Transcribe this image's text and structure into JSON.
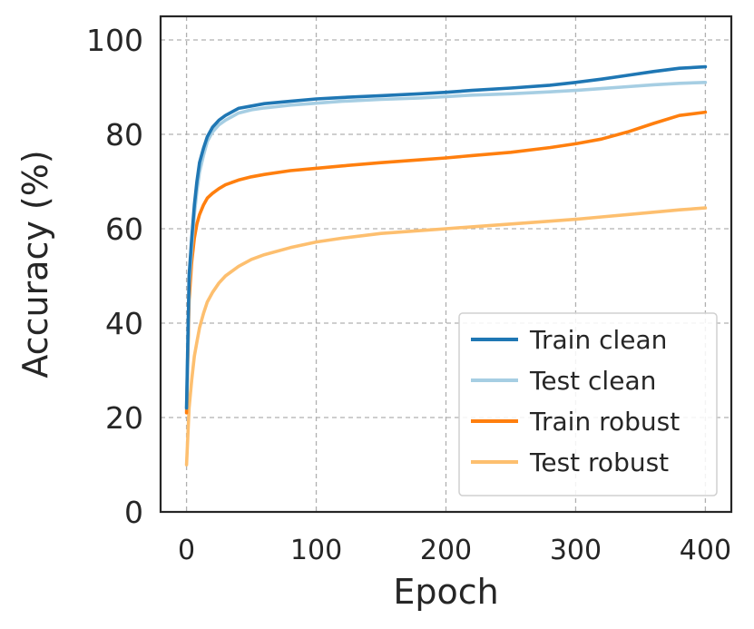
{
  "chart_data": {
    "type": "line",
    "title": "",
    "xlabel": "Epoch",
    "ylabel": "Accuracy (%)",
    "xlim": [
      -20,
      420
    ],
    "ylim": [
      0,
      105
    ],
    "xticks": [
      0,
      100,
      200,
      300,
      400
    ],
    "yticks": [
      0,
      20,
      40,
      60,
      80,
      100
    ],
    "grid": true,
    "legend_position": "lower-right",
    "series": [
      {
        "name": "Train clean",
        "color": "#1f77b4",
        "x": [
          0,
          2,
          4,
          6,
          8,
          10,
          13,
          16,
          20,
          25,
          30,
          40,
          50,
          60,
          80,
          100,
          120,
          150,
          180,
          200,
          220,
          250,
          280,
          300,
          320,
          340,
          360,
          380,
          400
        ],
        "y": [
          22,
          50,
          58,
          65,
          70,
          74,
          77,
          79.5,
          81.5,
          83,
          84,
          85.5,
          86,
          86.5,
          87,
          87.5,
          87.8,
          88.2,
          88.6,
          88.9,
          89.3,
          89.8,
          90.4,
          91,
          91.7,
          92.5,
          93.3,
          94,
          94.3
        ]
      },
      {
        "name": "Test clean",
        "color": "#a6cee3",
        "x": [
          0,
          2,
          4,
          6,
          8,
          10,
          13,
          16,
          20,
          25,
          30,
          40,
          50,
          60,
          80,
          100,
          120,
          150,
          180,
          200,
          220,
          250,
          280,
          300,
          320,
          340,
          360,
          380,
          400
        ],
        "y": [
          22,
          48,
          56,
          63,
          68,
          72,
          75.5,
          78.5,
          80.5,
          82,
          83,
          84.5,
          85.2,
          85.6,
          86.2,
          86.6,
          87,
          87.4,
          87.7,
          88,
          88.3,
          88.6,
          89,
          89.3,
          89.7,
          90.1,
          90.5,
          90.8,
          91
        ]
      },
      {
        "name": "Train robust",
        "color": "#ff7f0e",
        "x": [
          0,
          2,
          4,
          6,
          8,
          10,
          13,
          16,
          20,
          25,
          30,
          40,
          50,
          60,
          80,
          100,
          120,
          150,
          180,
          200,
          220,
          250,
          280,
          300,
          320,
          340,
          360,
          380,
          400
        ],
        "y": [
          21,
          45,
          53,
          58,
          61,
          63,
          65,
          66.5,
          67.5,
          68.5,
          69.3,
          70.3,
          71,
          71.5,
          72.3,
          72.8,
          73.3,
          74,
          74.6,
          75,
          75.5,
          76.2,
          77.2,
          78,
          79,
          80.5,
          82.3,
          84,
          84.7
        ]
      },
      {
        "name": "Test robust",
        "color": "#fdbf6f",
        "x": [
          0,
          2,
          4,
          6,
          8,
          10,
          13,
          16,
          20,
          25,
          30,
          40,
          50,
          60,
          80,
          100,
          120,
          150,
          180,
          200,
          220,
          250,
          280,
          300,
          320,
          340,
          360,
          380,
          400
        ],
        "y": [
          10,
          22,
          28,
          33,
          36,
          39,
          42,
          44.5,
          46.5,
          48.5,
          50,
          52,
          53.5,
          54.5,
          56,
          57.2,
          58,
          59,
          59.6,
          60,
          60.4,
          61,
          61.6,
          62,
          62.5,
          63,
          63.5,
          64,
          64.4
        ]
      }
    ]
  }
}
